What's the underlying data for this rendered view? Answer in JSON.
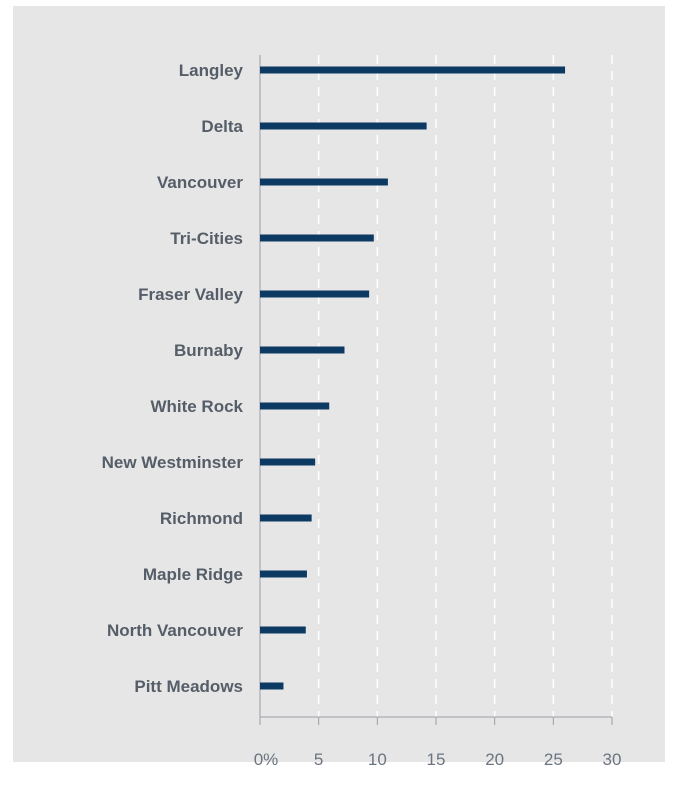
{
  "chart_data": {
    "type": "bar",
    "orientation": "horizontal",
    "categories": [
      "Langley",
      "Delta",
      "Vancouver",
      "Tri-Cities",
      "Fraser Valley",
      "Burnaby",
      "White Rock",
      "New Westminster",
      "Richmond",
      "Maple Ridge",
      "North Vancouver",
      "Pitt Meadows"
    ],
    "values": [
      26,
      14.2,
      10.9,
      9.7,
      9.3,
      7.2,
      5.9,
      4.7,
      4.4,
      4.0,
      3.9,
      2.0
    ],
    "xlim": [
      0,
      30
    ],
    "ticks": [
      "0%",
      "5",
      "10",
      "15",
      "20",
      "25",
      "30"
    ],
    "grid": "vertical dashed",
    "bar_color": "#0d3a62",
    "background_color": "#e6e6e6"
  }
}
